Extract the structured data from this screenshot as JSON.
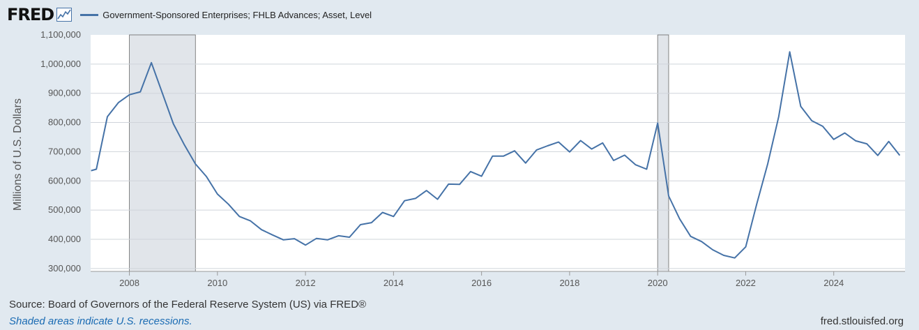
{
  "header": {
    "logo": "FRED",
    "logo_icon": "line-chart-icon",
    "legend_label": "Government-Sponsored Enterprises; FHLB Advances; Asset, Level",
    "legend_color": "#4572a7"
  },
  "chart_data": {
    "type": "line",
    "title": "",
    "ylabel": "Millions of U.S. Dollars",
    "xlabel": "",
    "xlim": [
      2007.12,
      2025.62
    ],
    "ylim": [
      290000,
      1100000
    ],
    "y_ticks": [
      300000,
      400000,
      500000,
      600000,
      700000,
      800000,
      900000,
      1000000,
      1100000
    ],
    "y_tick_labels": [
      "300,000",
      "400,000",
      "500,000",
      "600,000",
      "700,000",
      "800,000",
      "900,000",
      "1,000,000",
      "1,100,000"
    ],
    "x_ticks": [
      2008,
      2010,
      2012,
      2014,
      2016,
      2018,
      2020,
      2022,
      2024
    ],
    "x_tick_labels": [
      "2008",
      "2010",
      "2012",
      "2014",
      "2016",
      "2018",
      "2020",
      "2022",
      "2024"
    ],
    "grid": true,
    "recessions": [
      [
        2008.0,
        2009.5
      ],
      [
        2020.0,
        2020.25
      ]
    ],
    "series": [
      {
        "color": "#4572a7",
        "x": [
          2007.13,
          2007.25,
          2007.5,
          2007.75,
          2008.0,
          2008.25,
          2008.5,
          2008.75,
          2009.0,
          2009.25,
          2009.5,
          2009.75,
          2010.0,
          2010.25,
          2010.5,
          2010.75,
          2011.0,
          2011.25,
          2011.5,
          2011.75,
          2012.0,
          2012.25,
          2012.5,
          2012.75,
          2013.0,
          2013.25,
          2013.5,
          2013.75,
          2014.0,
          2014.25,
          2014.5,
          2014.75,
          2015.0,
          2015.25,
          2015.5,
          2015.75,
          2016.0,
          2016.25,
          2016.5,
          2016.75,
          2017.0,
          2017.25,
          2017.5,
          2017.75,
          2018.0,
          2018.25,
          2018.5,
          2018.75,
          2019.0,
          2019.25,
          2019.5,
          2019.75,
          2020.0,
          2020.25,
          2020.5,
          2020.75,
          2021.0,
          2021.25,
          2021.5,
          2021.75,
          2022.0,
          2022.25,
          2022.5,
          2022.75,
          2023.0,
          2023.25,
          2023.5,
          2023.75,
          2024.0,
          2024.25,
          2024.5,
          2024.75,
          2025.0,
          2025.25,
          2025.5
        ],
        "values": [
          635000,
          640000,
          820000,
          868000,
          895000,
          905000,
          1005000,
          900000,
          795000,
          723000,
          658000,
          615000,
          555000,
          520000,
          478000,
          463000,
          433000,
          415000,
          398000,
          402000,
          380000,
          403000,
          398000,
          412000,
          407000,
          450000,
          457000,
          492000,
          478000,
          532000,
          540000,
          567000,
          537000,
          589000,
          588000,
          632000,
          616000,
          685000,
          685000,
          703000,
          661000,
          706000,
          720000,
          733000,
          699000,
          738000,
          709000,
          730000,
          670000,
          688000,
          655000,
          640000,
          798000,
          548000,
          470000,
          410000,
          392000,
          364000,
          345000,
          336000,
          374000,
          520000,
          658000,
          820000,
          1042000,
          855000,
          806000,
          787000,
          742000,
          764000,
          737000,
          727000,
          687000,
          735000,
          687000
        ]
      }
    ]
  },
  "footer": {
    "source": "Source: Board of Governors of the Federal Reserve System (US) via FRED®",
    "note": "Shaded areas indicate U.S. recessions.",
    "url": "fred.stlouisfed.org"
  }
}
